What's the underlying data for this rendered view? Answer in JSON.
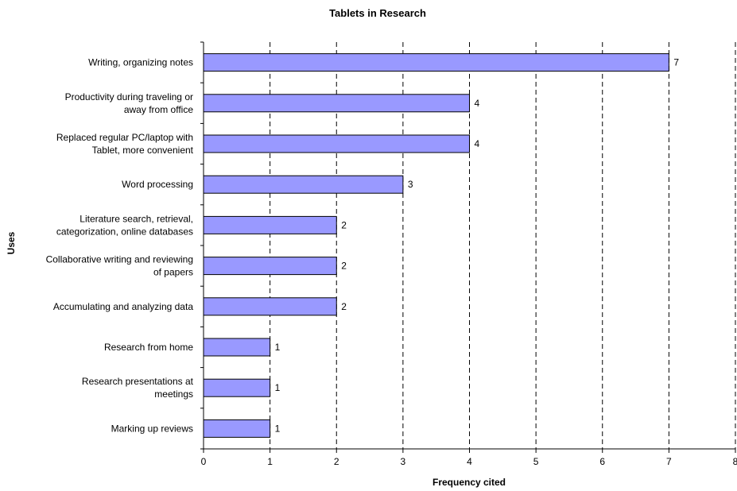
{
  "chart_data": {
    "type": "bar",
    "orientation": "horizontal",
    "title": "Tablets in Research",
    "xlabel": "Frequency cited",
    "ylabel": "Uses",
    "xlim": [
      0,
      8
    ],
    "x_ticks": [
      "0",
      "1",
      "2",
      "3",
      "4",
      "5",
      "6",
      "7",
      "8"
    ],
    "grid": "vertical dashed",
    "bar_color": "#9999ff",
    "categories": [
      "Writing, organizing notes",
      "Productivity during traveling or away from office",
      "Replaced regular PC/laptop with Tablet, more convenient",
      "Word processing",
      "Literature search, retrieval, categorization, online databases",
      "Collaborative writing and reviewing of papers",
      "Accumulating and analyzing data",
      "Research from home",
      "Research presentations at meetings",
      "Marking up reviews"
    ],
    "category_lines": [
      [
        "Writing, organizing notes"
      ],
      [
        "Productivity during traveling or",
        "away from office"
      ],
      [
        "Replaced regular PC/laptop with",
        "Tablet, more convenient"
      ],
      [
        "Word processing"
      ],
      [
        "Literature search, retrieval,",
        "categorization, online databases"
      ],
      [
        "Collaborative writing and reviewing",
        "of papers"
      ],
      [
        "Accumulating and analyzing data"
      ],
      [
        "Research from home"
      ],
      [
        "Research presentations at",
        "meetings"
      ],
      [
        "Marking up reviews"
      ]
    ],
    "values": [
      7,
      4,
      4,
      3,
      2,
      2,
      2,
      1,
      1,
      1
    ]
  }
}
